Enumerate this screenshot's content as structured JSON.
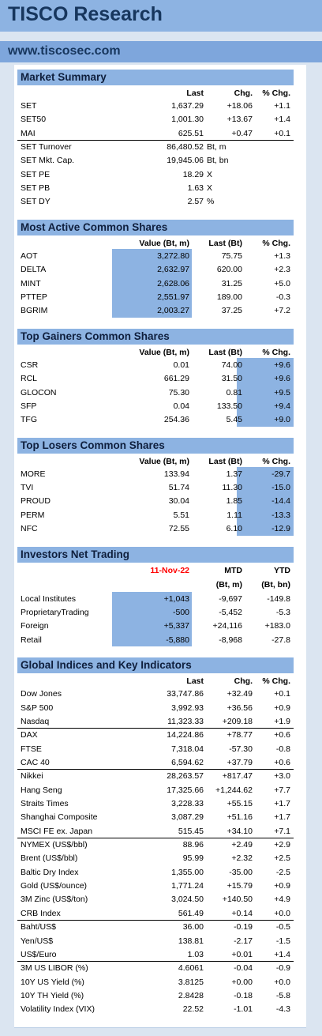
{
  "header": {
    "title": "TISCO Research",
    "website": "www.tiscosec.com"
  },
  "sections": [
    {
      "title": "Market Summary",
      "columns": [
        "Last",
        "Chg.",
        "% Chg."
      ],
      "groups": [
        [
          [
            "SET",
            "1,637.29",
            "+18.06",
            "+1.1"
          ],
          [
            "SET50",
            "1,001.30",
            "+13.67",
            "+1.4"
          ],
          [
            "MAI",
            "625.51",
            "+0.47",
            "+0.1"
          ]
        ],
        [
          {
            "label": "SET Turnover",
            "value": "86,480.52",
            "unit": "Bt, m"
          },
          {
            "label": "SET Mkt. Cap.",
            "value": "19,945.06",
            "unit": "Bt, bn"
          },
          {
            "label": "SET PE",
            "value": "18.29",
            "unit": "X"
          },
          {
            "label": "SET PB",
            "value": "1.63",
            "unit": "X"
          },
          {
            "label": "SET DY",
            "value": "2.57",
            "unit": "%"
          }
        ]
      ]
    },
    {
      "title": "Most Active Common Shares",
      "columns": [
        "Value (Bt, m)",
        "Last (Bt)",
        "% Chg."
      ],
      "highlight": 1,
      "groups": [
        [
          [
            "AOT",
            "3,272.80",
            "75.75",
            "+1.3"
          ],
          [
            "DELTA",
            "2,632.97",
            "620.00",
            "+2.3"
          ],
          [
            "MINT",
            "2,628.06",
            "31.25",
            "+5.0"
          ],
          [
            "PTTEP",
            "2,551.97",
            "189.00",
            "-0.3"
          ],
          [
            "BGRIM",
            "2,003.27",
            "37.25",
            "+7.2"
          ]
        ]
      ]
    },
    {
      "title": "Top Gainers Common Shares",
      "columns": [
        "Value (Bt, m)",
        "Last (Bt)",
        "% Chg."
      ],
      "highlight": 3,
      "groups": [
        [
          [
            "CSR",
            "0.01",
            "74.00",
            "+9.6"
          ],
          [
            "RCL",
            "661.29",
            "31.50",
            "+9.6"
          ],
          [
            "GLOCON",
            "75.30",
            "0.81",
            "+9.5"
          ],
          [
            "SFP",
            "0.04",
            "133.50",
            "+9.4"
          ],
          [
            "TFG",
            "254.36",
            "5.45",
            "+9.0"
          ]
        ]
      ]
    },
    {
      "title": "Top Losers Common Shares",
      "columns": [
        "Value (Bt, m)",
        "Last (Bt)",
        "% Chg."
      ],
      "highlight": 3,
      "groups": [
        [
          [
            "MORE",
            "133.94",
            "1.37",
            "-29.7"
          ],
          [
            "TVI",
            "51.74",
            "11.30",
            "-15.0"
          ],
          [
            "PROUD",
            "30.04",
            "1.85",
            "-14.4"
          ],
          [
            "PERM",
            "5.51",
            "1.11",
            "-13.3"
          ],
          [
            "NFC",
            "72.55",
            "6.10",
            "-12.9"
          ]
        ]
      ]
    },
    {
      "title": "Investors Net Trading",
      "date": "11-Nov-22",
      "columns": [
        "MTD",
        "YTD"
      ],
      "subheader": [
        "(Bt, m)",
        "(Bt, bn)"
      ],
      "highlight": 1,
      "groups": [
        [
          [
            "Local Institutes",
            "+1,043",
            "-9,697",
            "-149.8"
          ],
          [
            "ProprietaryTrading",
            "-500",
            "-5,452",
            "-5.3"
          ],
          [
            "Foreign",
            "+5,337",
            "+24,116",
            "+183.0"
          ],
          [
            "Retail",
            "-5,880",
            "-8,968",
            "-27.8"
          ]
        ]
      ]
    },
    {
      "title": "Global Indices and Key Indicators",
      "columns": [
        "Last",
        "Chg.",
        "% Chg."
      ],
      "groups": [
        [
          [
            "Dow Jones",
            "33,747.86",
            "+32.49",
            "+0.1"
          ],
          [
            "S&P 500",
            "3,992.93",
            "+36.56",
            "+0.9"
          ],
          [
            "Nasdaq",
            "11,323.33",
            "+209.18",
            "+1.9"
          ]
        ],
        [
          [
            "DAX",
            "14,224.86",
            "+78.77",
            "+0.6"
          ],
          [
            "FTSE",
            "7,318.04",
            "-57.30",
            "-0.8"
          ],
          [
            "CAC 40",
            "6,594.62",
            "+37.79",
            "+0.6"
          ]
        ],
        [
          [
            "Nikkei",
            "28,263.57",
            "+817.47",
            "+3.0"
          ],
          [
            "Hang Seng",
            "17,325.66",
            "+1,244.62",
            "+7.7"
          ],
          [
            "Straits Times",
            "3,228.33",
            "+55.15",
            "+1.7"
          ],
          [
            "Shanghai Composite",
            "3,087.29",
            "+51.16",
            "+1.7"
          ],
          [
            "MSCI FE ex. Japan",
            "515.45",
            "+34.10",
            "+7.1"
          ]
        ],
        [
          [
            "NYMEX (US$/bbl)",
            "88.96",
            "+2.49",
            "+2.9"
          ],
          [
            "Brent (US$/bbl)",
            "95.99",
            "+2.32",
            "+2.5"
          ],
          [
            "Baltic Dry Index",
            "1,355.00",
            "-35.00",
            "-2.5"
          ],
          [
            "Gold (US$/ounce)",
            "1,771.24",
            "+15.79",
            "+0.9"
          ],
          [
            "3M Zinc (US$/ton)",
            "3,024.50",
            "+140.50",
            "+4.9"
          ],
          [
            "CRB Index",
            "561.49",
            "+0.14",
            "+0.0"
          ]
        ],
        [
          [
            "Baht/US$",
            "36.00",
            "-0.19",
            "-0.5"
          ],
          [
            "Yen/US$",
            "138.81",
            "-2.17",
            "-1.5"
          ],
          [
            "US$/Euro",
            "1.03",
            "+0.01",
            "+1.4"
          ]
        ],
        [
          [
            "3M US LIBOR (%)",
            "4.6061",
            "-0.04",
            "-0.9"
          ],
          [
            "10Y US Yield (%)",
            "3.8125",
            "+0.00",
            "+0.0"
          ],
          [
            "10Y TH Yield (%)",
            "2.8428",
            "-0.18",
            "-5.8"
          ],
          [
            "Volatility Index (VIX)",
            "22.52",
            "-1.01",
            "-4.3"
          ]
        ]
      ]
    }
  ]
}
